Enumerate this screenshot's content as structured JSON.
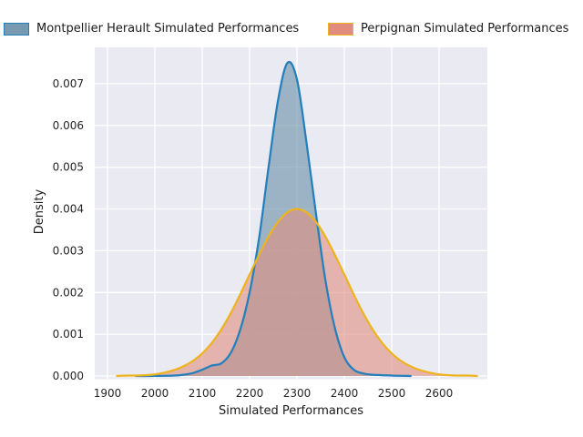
{
  "chart_data": {
    "type": "area",
    "subtype": "kde-density",
    "title": "",
    "xlabel": "Simulated Performances",
    "ylabel": "Density",
    "xlim": [
      1873,
      2702
    ],
    "ylim": [
      0,
      0.00787
    ],
    "xticks": [
      1900,
      2000,
      2100,
      2200,
      2300,
      2400,
      2500,
      2600
    ],
    "yticks": [
      0,
      0.001,
      0.002,
      0.003,
      0.004,
      0.005,
      0.006,
      0.007
    ],
    "ytick_labels": [
      "0.000",
      "0.001",
      "0.002",
      "0.003",
      "0.004",
      "0.005",
      "0.006",
      "0.007"
    ],
    "grid": true,
    "legend_position": "top",
    "plot_background": "#eaeaf2",
    "grid_color": "#ffffff",
    "series": [
      {
        "name": "Montpellier Herault Simulated Performances",
        "line_color": "#2380bd",
        "fill_color": "#7899b0",
        "fill_opacity": 0.68,
        "peak_x": 2280,
        "peak_density": 0.0075,
        "x": [
          1960,
          1980,
          2000,
          2020,
          2040,
          2060,
          2080,
          2100,
          2120,
          2140,
          2160,
          2180,
          2200,
          2220,
          2240,
          2260,
          2280,
          2300,
          2320,
          2340,
          2360,
          2380,
          2400,
          2420,
          2440,
          2460,
          2480,
          2500,
          2520,
          2540
        ],
        "y": [
          0,
          1e-06,
          2e-06,
          5e-06,
          1e-05,
          3e-05,
          7e-05,
          0.00015,
          0.00025,
          0.0003,
          0.00055,
          0.0011,
          0.002,
          0.0033,
          0.005,
          0.0066,
          0.0075,
          0.0071,
          0.0056,
          0.0039,
          0.0023,
          0.00115,
          0.00045,
          0.00015,
          6e-05,
          3e-05,
          2e-05,
          1e-05,
          5e-06,
          0
        ]
      },
      {
        "name": "Perpignan Simulated Performances",
        "line_color": "#edb41e",
        "fill_color": "#e18d7e",
        "fill_opacity": 0.6,
        "peak_x": 2300,
        "peak_density": 0.004,
        "x": [
          1920,
          1940,
          1960,
          1980,
          2000,
          2020,
          2040,
          2060,
          2080,
          2100,
          2120,
          2140,
          2160,
          2180,
          2200,
          2220,
          2240,
          2260,
          2280,
          2300,
          2320,
          2340,
          2360,
          2380,
          2400,
          2420,
          2440,
          2460,
          2480,
          2500,
          2520,
          2540,
          2560,
          2580,
          2600,
          2620,
          2640,
          2660,
          2680
        ],
        "y": [
          0,
          1e-05,
          1e-05,
          2e-05,
          4e-05,
          8e-05,
          0.00014,
          0.00023,
          0.00036,
          0.00054,
          0.00079,
          0.00111,
          0.0015,
          0.00195,
          0.00243,
          0.0029,
          0.00334,
          0.00369,
          0.00392,
          0.004,
          0.00392,
          0.00369,
          0.00334,
          0.0029,
          0.00243,
          0.00195,
          0.0015,
          0.00111,
          0.00079,
          0.00054,
          0.00036,
          0.00023,
          0.00014,
          8e-05,
          4e-05,
          2e-05,
          1e-05,
          1e-05,
          0
        ]
      }
    ]
  }
}
